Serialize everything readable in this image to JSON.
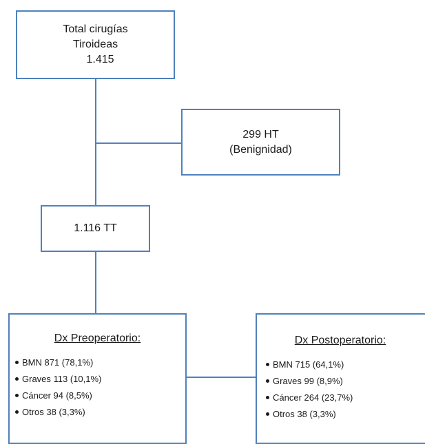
{
  "total": {
    "line1": "Total cirugías",
    "line2": "Tiroideas",
    "line3": "1.415"
  },
  "ht": {
    "line1": "299 HT",
    "line2": "(Benignidad)"
  },
  "tt": {
    "label": "1.116 TT"
  },
  "preop": {
    "title": "Dx Preoperatorio:",
    "items": [
      "BMN 871 (78,1%)",
      "Graves 113 (10,1%)",
      "Cáncer 94 (8,5%)",
      "Otros 38 (3,3%)"
    ]
  },
  "postop": {
    "title": "Dx Postoperatorio:",
    "items": [
      "BMN 715 (64,1%)",
      "Graves 99 (8,9%)",
      "Cáncer 264 (23,7%)",
      "Otros 38 (3,3%)"
    ]
  },
  "colors": {
    "border": "#4f81bd",
    "text": "#1a1a1a"
  }
}
